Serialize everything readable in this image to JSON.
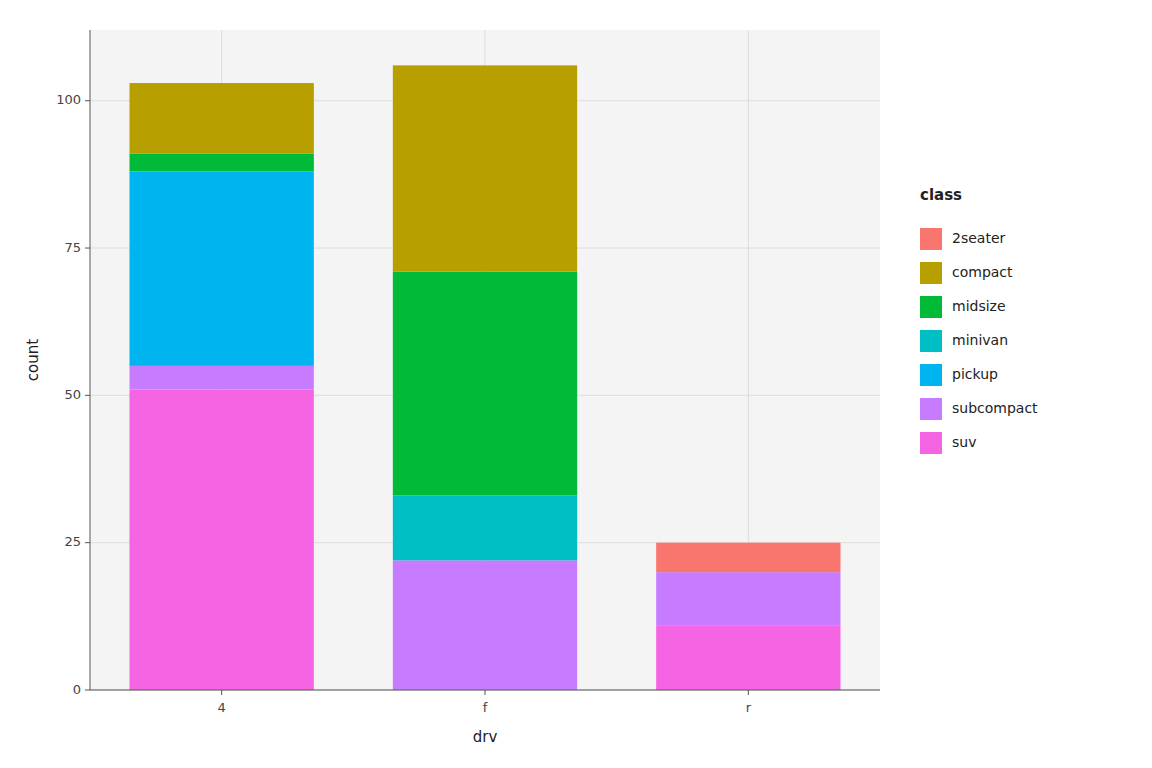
{
  "chart_data": {
    "type": "bar",
    "stacked": true,
    "categories": [
      "4",
      "f",
      "r"
    ],
    "series": [
      {
        "name": "suv",
        "color": "#F564E3",
        "values": [
          51,
          0,
          11
        ]
      },
      {
        "name": "subcompact",
        "color": "#C77CFF",
        "values": [
          4,
          22,
          9
        ]
      },
      {
        "name": "pickup",
        "color": "#00B4F0",
        "values": [
          33,
          0,
          0
        ]
      },
      {
        "name": "minivan",
        "color": "#00BFC4",
        "values": [
          0,
          11,
          0
        ]
      },
      {
        "name": "midsize",
        "color": "#00BA38",
        "values": [
          3,
          38,
          0
        ]
      },
      {
        "name": "compact",
        "color": "#B79F00",
        "values": [
          12,
          35,
          0
        ]
      },
      {
        "name": "2seater",
        "color": "#F8766D",
        "values": [
          0,
          0,
          5
        ]
      }
    ],
    "x_label": "drv",
    "y_label": "count",
    "ylim": [
      0,
      112
    ],
    "yticks": [
      0,
      25,
      50,
      75,
      100
    ],
    "grid": true,
    "legend": "right",
    "legend_title": "class"
  }
}
